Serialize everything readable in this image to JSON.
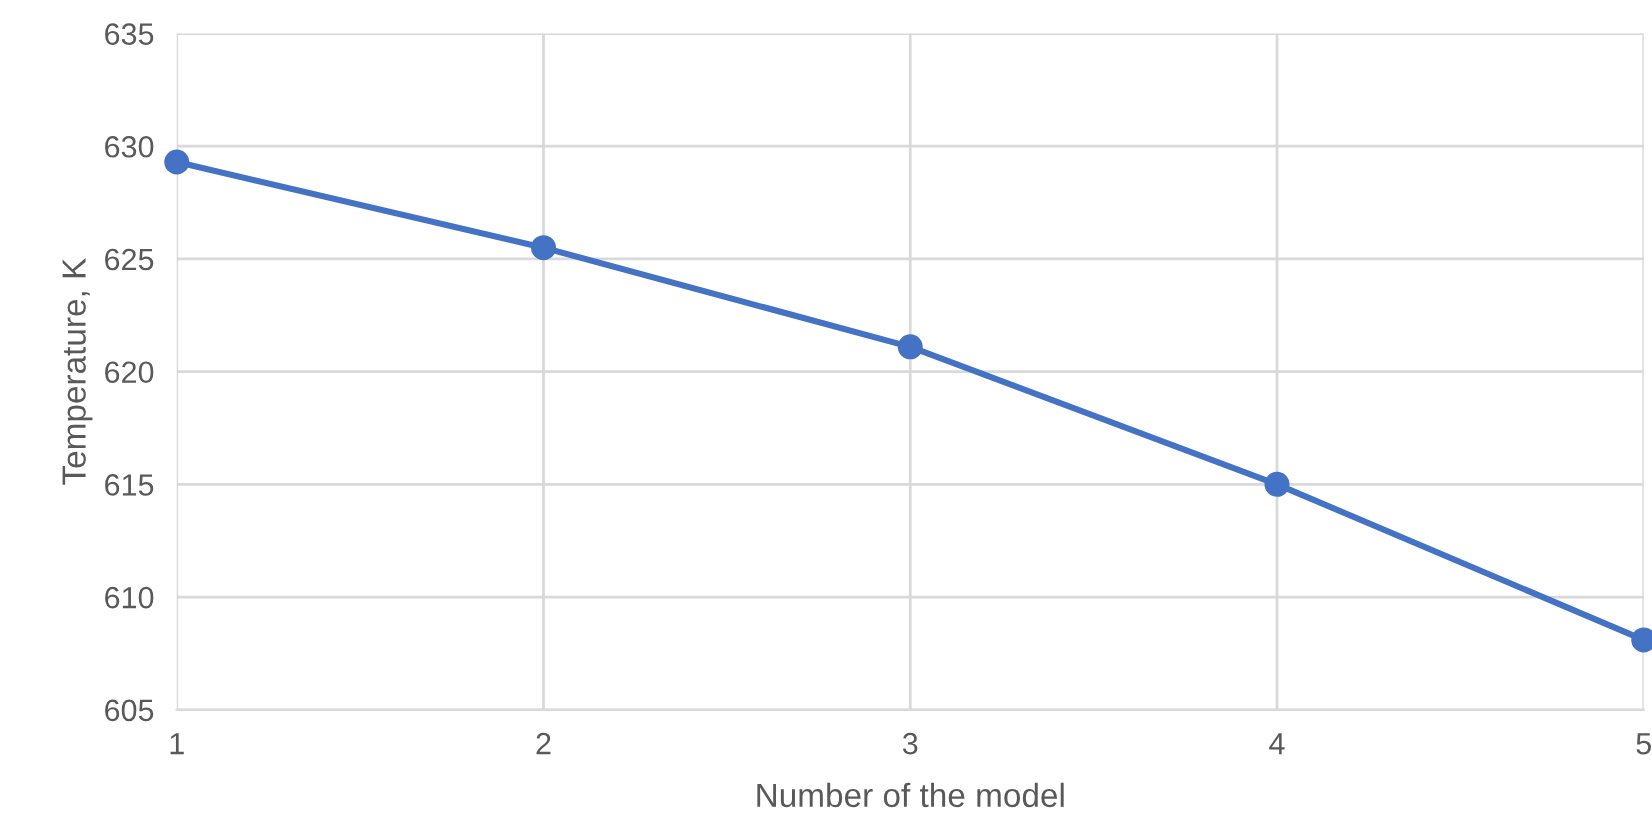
{
  "chart_data": {
    "type": "line",
    "xlabel": "Number of the model",
    "ylabel": "Temperature, K",
    "x": [
      1,
      2,
      3,
      4,
      5
    ],
    "series": [
      {
        "color": "#4472c4",
        "values": [
          629.3,
          625.5,
          621.1,
          615.0,
          608.1
        ]
      }
    ],
    "xlim": [
      1,
      5
    ],
    "xticks": [
      1,
      2,
      3,
      4,
      5
    ],
    "ylim": [
      605,
      635
    ],
    "yticks": [
      605,
      610,
      615,
      620,
      625,
      630,
      635
    ],
    "grid": true,
    "marker": "circle",
    "line_style": "solid"
  }
}
